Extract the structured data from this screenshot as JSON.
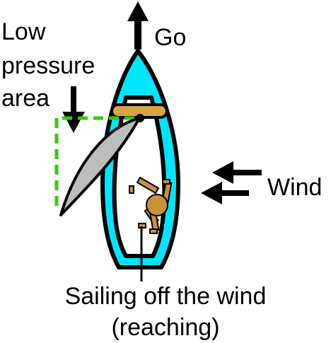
{
  "labels": {
    "go": "Go",
    "low_pressure_line1": "Low",
    "low_pressure_line2": "pressure",
    "low_pressure_line3": "area",
    "wind": "Wind",
    "caption_line1": "Sailing off the wind",
    "caption_line2": "(reaching)"
  },
  "colors": {
    "hull_fill": "#00e5ff",
    "hull_stroke": "#000000",
    "deck_fill": "#ffffff",
    "boom": "#d9a441",
    "sail": "#bdbdbd",
    "pressure_outline": "#33cc00",
    "sailor": "#c8923a",
    "arrow": "#000000"
  },
  "icons": {
    "go_arrow": "arrow-up-icon",
    "wind_arrows": "arrow-left-icon",
    "pressure_arrow": "arrow-down-icon",
    "sailor": "sailor-icon"
  }
}
